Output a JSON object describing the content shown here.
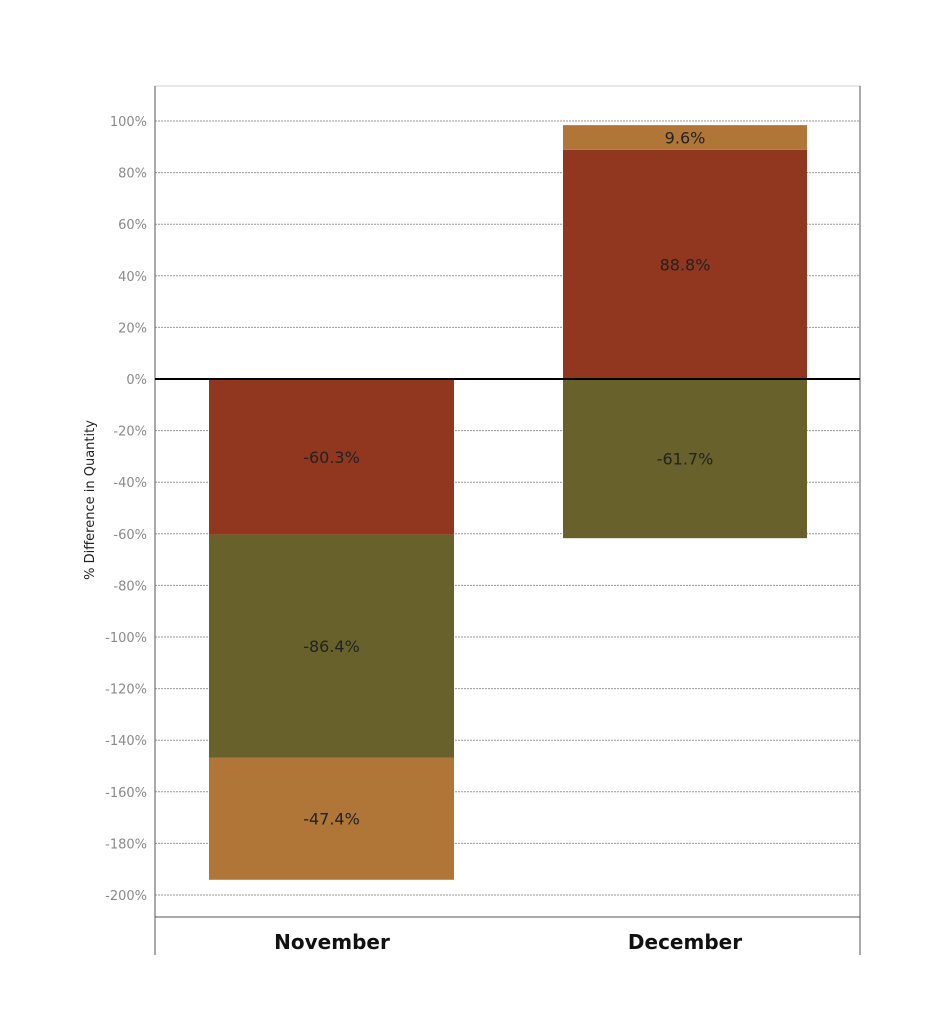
{
  "chart_data": {
    "type": "bar",
    "stacked": true,
    "ylabel": "% Difference in Quantity",
    "xlabel": "",
    "ylim": [
      -210,
      112
    ],
    "yticks": [
      100,
      80,
      60,
      40,
      20,
      0,
      -20,
      -40,
      -60,
      -80,
      -100,
      -120,
      -140,
      -160,
      -180,
      -200
    ],
    "ytick_suffix": "%",
    "grid": true,
    "categories": [
      "November",
      "December"
    ],
    "bars": [
      {
        "category": "November",
        "segments": [
          {
            "value": -60.3,
            "label": "-60.3%",
            "color": "#913720"
          },
          {
            "value": -86.4,
            "label": "-86.4%",
            "color": "#68612b"
          },
          {
            "value": -47.4,
            "label": "-47.4%",
            "color": "#b07638"
          }
        ]
      },
      {
        "category": "December",
        "segments": [
          {
            "value": -61.7,
            "label": "-61.7%",
            "color": "#68612b"
          },
          {
            "value": 88.8,
            "label": "88.8%",
            "color": "#913720"
          },
          {
            "value": 9.6,
            "label": "9.6%",
            "color": "#b07638"
          }
        ]
      }
    ]
  }
}
